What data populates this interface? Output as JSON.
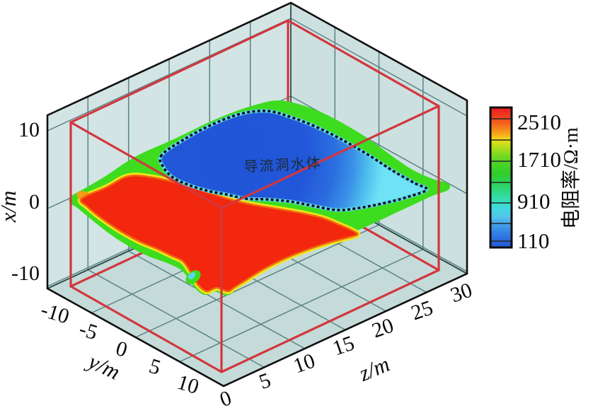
{
  "chart_data": {
    "type": "heatmap",
    "subtype": "3d-volume-slice-resistivity",
    "title": "",
    "axes": {
      "x": {
        "label": "x/m",
        "tick_labels": [
          "10",
          "0",
          "-10"
        ],
        "tick_values": [
          10,
          0,
          -10
        ],
        "range": [
          -10,
          12
        ]
      },
      "y": {
        "label": "y/m",
        "tick_labels": [
          "-10",
          "-5",
          "0",
          "5",
          "10"
        ],
        "tick_values": [
          -10,
          -5,
          0,
          5,
          10
        ],
        "range": [
          -10,
          10
        ]
      },
      "z": {
        "label": "z/m",
        "tick_labels": [
          "0",
          "5",
          "10",
          "15",
          "20",
          "25",
          "30"
        ],
        "tick_values": [
          0,
          5,
          10,
          15,
          20,
          25,
          30
        ],
        "range": [
          0,
          30
        ]
      }
    },
    "colorbar": {
      "title": "电阻率/Ω·m",
      "tick_labels": [
        "2510",
        "1710",
        "910",
        "110"
      ],
      "tick_values": [
        2510,
        1710,
        910,
        110
      ],
      "orientation": "vertical",
      "legend_position": "right",
      "colors_top_to_bottom": [
        "#ee1c24",
        "#f4711c",
        "#f0dc1a",
        "#a8de1c",
        "#4cd426",
        "#2dd155",
        "#30d885",
        "#37debc",
        "#54c5ec",
        "#3583e4",
        "#2259d9"
      ]
    },
    "annotation": {
      "text": "导流洞水体"
    },
    "grid": "on",
    "scene": {
      "box_wall_color": "#cfe1e1",
      "grid_color": "#5a8382",
      "inner_wireframe_color": "#d2363e",
      "slice_high_resistivity_color": "#f2270d",
      "slice_low_resistivity_color": "#2154d7",
      "water_body_outline": "black dotted",
      "description": "Horizontal slice near x=0: red high-resistivity zone at front-left, blue low-resistivity water body (dotted outline) at back-right inside a red wireframe box"
    }
  }
}
